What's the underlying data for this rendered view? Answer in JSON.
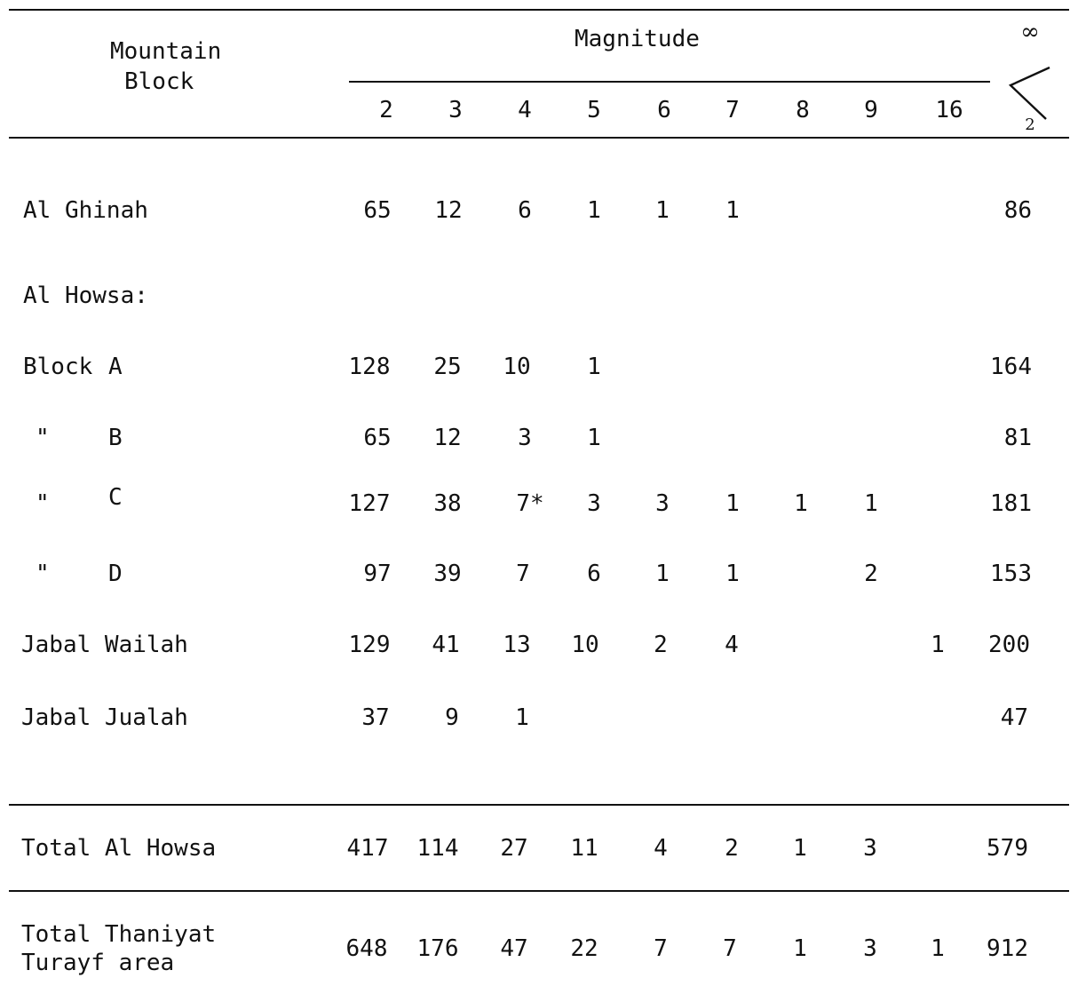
{
  "header": {
    "stub_line1": "Mountain",
    "stub_line2": "Block",
    "group_label": "Magnitude",
    "magnitudes": [
      "2",
      "3",
      "4",
      "5",
      "6",
      "7",
      "8",
      "9",
      "16"
    ],
    "sum_symbol": {
      "top": "∞",
      "bottom": "2",
      "icon": "summation-icon"
    }
  },
  "rows": {
    "al_ghinah": {
      "label": "Al Ghinah",
      "cells": [
        "65",
        "12",
        "6",
        "1",
        "1",
        "1",
        "",
        "",
        ""
      ],
      "total": "86"
    },
    "al_howsa_heading": {
      "label": "Al Howsa:"
    },
    "block_a": {
      "label1": "Block",
      "label2": "A",
      "cells": [
        "128",
        "25",
        "10",
        "1",
        "",
        "",
        "",
        "",
        ""
      ],
      "total": "164"
    },
    "block_b": {
      "label1": "\"",
      "label2": "B",
      "cells": [
        "65",
        "12",
        "3",
        "1",
        "",
        "",
        "",
        "",
        ""
      ],
      "total": "81"
    },
    "block_c": {
      "label1": "\"",
      "label2": "C",
      "cells": [
        "127",
        "38",
        "7*",
        "3",
        "3",
        "1",
        "1",
        "1",
        ""
      ],
      "total": "181"
    },
    "block_d": {
      "label1": "\"",
      "label2": "D",
      "cells": [
        "97",
        "39",
        "7",
        "6",
        "1",
        "1",
        "",
        "2",
        ""
      ],
      "total": "153"
    },
    "jabal_wailah": {
      "label": "Jabal Wailah",
      "cells": [
        "129",
        "41",
        "13",
        "10",
        "2",
        "4",
        "",
        "",
        "1"
      ],
      "total": "200"
    },
    "jabal_jualah": {
      "label": "Jabal Jualah",
      "cells": [
        "37",
        "9",
        "1",
        "",
        "",
        "",
        "",
        "",
        ""
      ],
      "total": "47"
    },
    "total_al_howsa": {
      "label": "Total Al Howsa",
      "cells": [
        "417",
        "114",
        "27",
        "11",
        "4",
        "2",
        "1",
        "3",
        ""
      ],
      "total": "579"
    },
    "total_area": {
      "label_line1": "Total Thaniyat",
      "label_line2": "Turayf area",
      "cells": [
        "648",
        "176",
        "47",
        "22",
        "7",
        "7",
        "1",
        "3",
        "1"
      ],
      "total": "912"
    }
  }
}
